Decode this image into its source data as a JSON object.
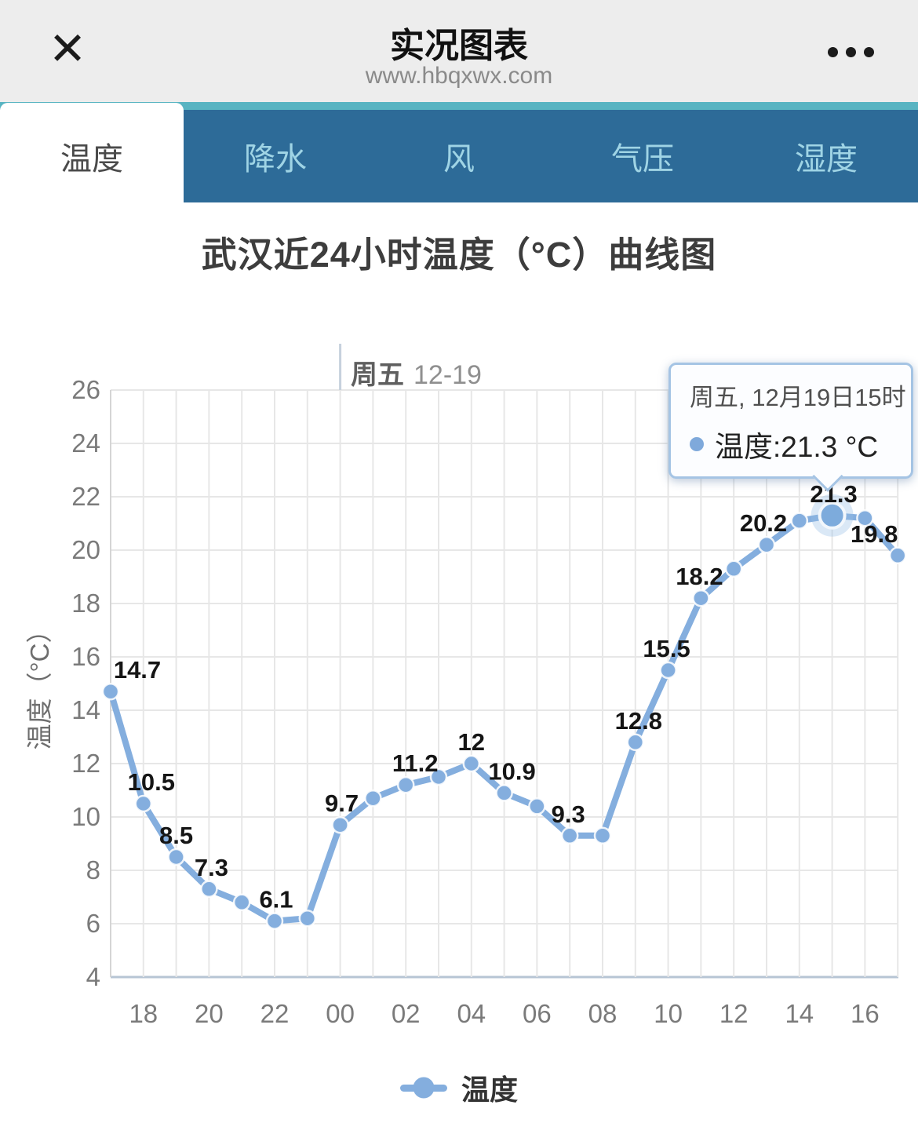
{
  "header": {
    "close_glyph": "✕",
    "title": "实况图表",
    "url": "www.hbqxwx.com"
  },
  "tabs": [
    {
      "label": "温度",
      "active": true
    },
    {
      "label": "降水",
      "active": false
    },
    {
      "label": "风",
      "active": false
    },
    {
      "label": "气压",
      "active": false
    },
    {
      "label": "湿度",
      "active": false
    }
  ],
  "chart_title": "武汉近24小时温度（°C）曲线图",
  "annotation": {
    "day": "周五",
    "date": "12-19"
  },
  "tooltip": {
    "header": "周五, 12月19日15时",
    "label": "温度:21.3 °C"
  },
  "chart_data": {
    "type": "line",
    "title": "武汉近24小时温度（°C）曲线图",
    "xlabel": "",
    "ylabel": "温度（°C）",
    "x": [
      "17",
      "18",
      "19",
      "20",
      "21",
      "22",
      "23",
      "00",
      "01",
      "02",
      "03",
      "04",
      "05",
      "06",
      "07",
      "08",
      "09",
      "10",
      "11",
      "12",
      "13",
      "14",
      "15",
      "16",
      "17"
    ],
    "x_tick_labels": [
      "18",
      "20",
      "22",
      "00",
      "02",
      "04",
      "06",
      "08",
      "10",
      "12",
      "14",
      "16"
    ],
    "ylim": [
      4,
      26
    ],
    "ytick_step": 2,
    "grid": true,
    "legend_position": "bottom",
    "series": [
      {
        "name": "温度",
        "values": [
          14.7,
          10.5,
          8.5,
          7.3,
          6.8,
          6.1,
          6.2,
          9.7,
          10.7,
          11.2,
          11.5,
          12,
          10.9,
          10.4,
          9.3,
          9.3,
          12.8,
          15.5,
          18.2,
          19.3,
          20.2,
          21.1,
          21.3,
          21.2,
          19.8
        ]
      }
    ],
    "point_labels": [
      {
        "text": "14.7",
        "dx": 34
      },
      {
        "text": "10.5",
        "dx": 10
      },
      {
        "text": "8.5",
        "dx": 0
      },
      {
        "text": "7.3",
        "dx": 3
      },
      null,
      {
        "text": "6.1",
        "dx": 2
      },
      null,
      {
        "text": "9.7",
        "dx": 2
      },
      null,
      {
        "text": "11.2",
        "dx": 12
      },
      null,
      {
        "text": "12",
        "dx": 0
      },
      {
        "text": "10.9",
        "dx": 10
      },
      null,
      {
        "text": "9.3",
        "dx": -2
      },
      null,
      {
        "text": "12.8",
        "dx": 4
      },
      {
        "text": "15.5",
        "dx": -2
      },
      {
        "text": "18.2",
        "dx": -2
      },
      null,
      {
        "text": "20.2",
        "dx": -4
      },
      null,
      {
        "text": "21.3",
        "dx": 2
      },
      null,
      {
        "text": "19.8",
        "dx": -30
      }
    ],
    "highlight_index": 22,
    "day_separator_index": 7
  },
  "colors": {
    "line": "#84aede",
    "marker": "#84aede",
    "highlight_fill": "#7dabdc",
    "halo": "rgba(150,190,230,0.35)",
    "teal_strip": "#58b4c2",
    "tab_bar": "#2d6b98",
    "tab_active_text": "#4a4a4a",
    "tab_inactive_text": "#9fd4e5",
    "tooltip_border": "#a5c4e4",
    "grid": "#e7e7e7",
    "axis_left": "#d5d5d5",
    "axis_bottom": "#b7c5d4",
    "day_line": "#c6d1dd",
    "tick_text": "#7a7a7a",
    "point_label_text": "#151515"
  }
}
